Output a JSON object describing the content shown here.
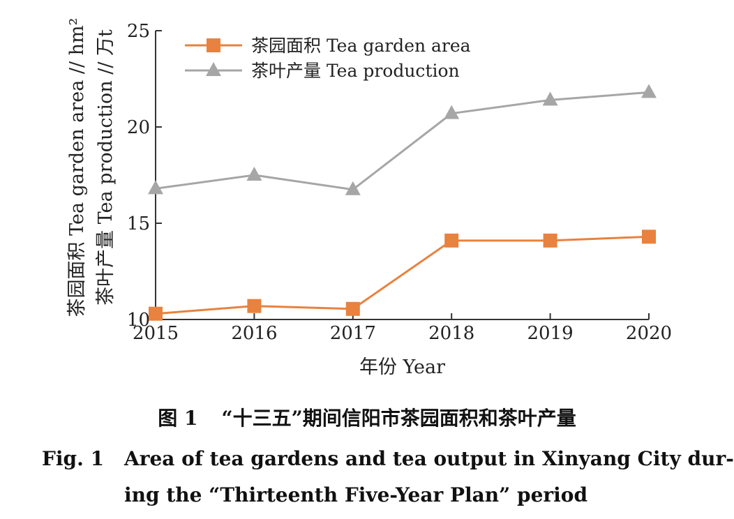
{
  "chart_data": {
    "type": "line",
    "x": [
      "2015",
      "2016",
      "2017",
      "2018",
      "2019",
      "2020"
    ],
    "ylim": [
      10,
      25
    ],
    "yticks": [
      "10",
      "15",
      "20",
      "25"
    ],
    "xlabel": "年份 Year",
    "ylabel_lines": [
      "茶园面积 Tea garden area // hm²",
      "茶叶产量 Tea production // 万t"
    ],
    "legend_position": "top-left",
    "grid": false,
    "series": [
      {
        "name": "茶园面积 Tea garden area",
        "color": "#e8823e",
        "marker": "square",
        "values": [
          10.3,
          10.7,
          10.55,
          14.1,
          14.1,
          14.3
        ]
      },
      {
        "name": "茶叶产量 Tea production",
        "color": "#a6a6a6",
        "marker": "triangle",
        "values": [
          16.8,
          17.5,
          16.75,
          20.7,
          21.4,
          21.8
        ]
      }
    ]
  },
  "caption": {
    "cn_number": "图 1",
    "cn_text": "“十三五”期间信阳市茶园面积和茶叶产量",
    "en_number": "Fig. 1",
    "en_line1": "Area of tea gardens and tea output in Xinyang City dur-",
    "en_line2": "ing the “Thirteenth Five-Year Plan” period"
  }
}
